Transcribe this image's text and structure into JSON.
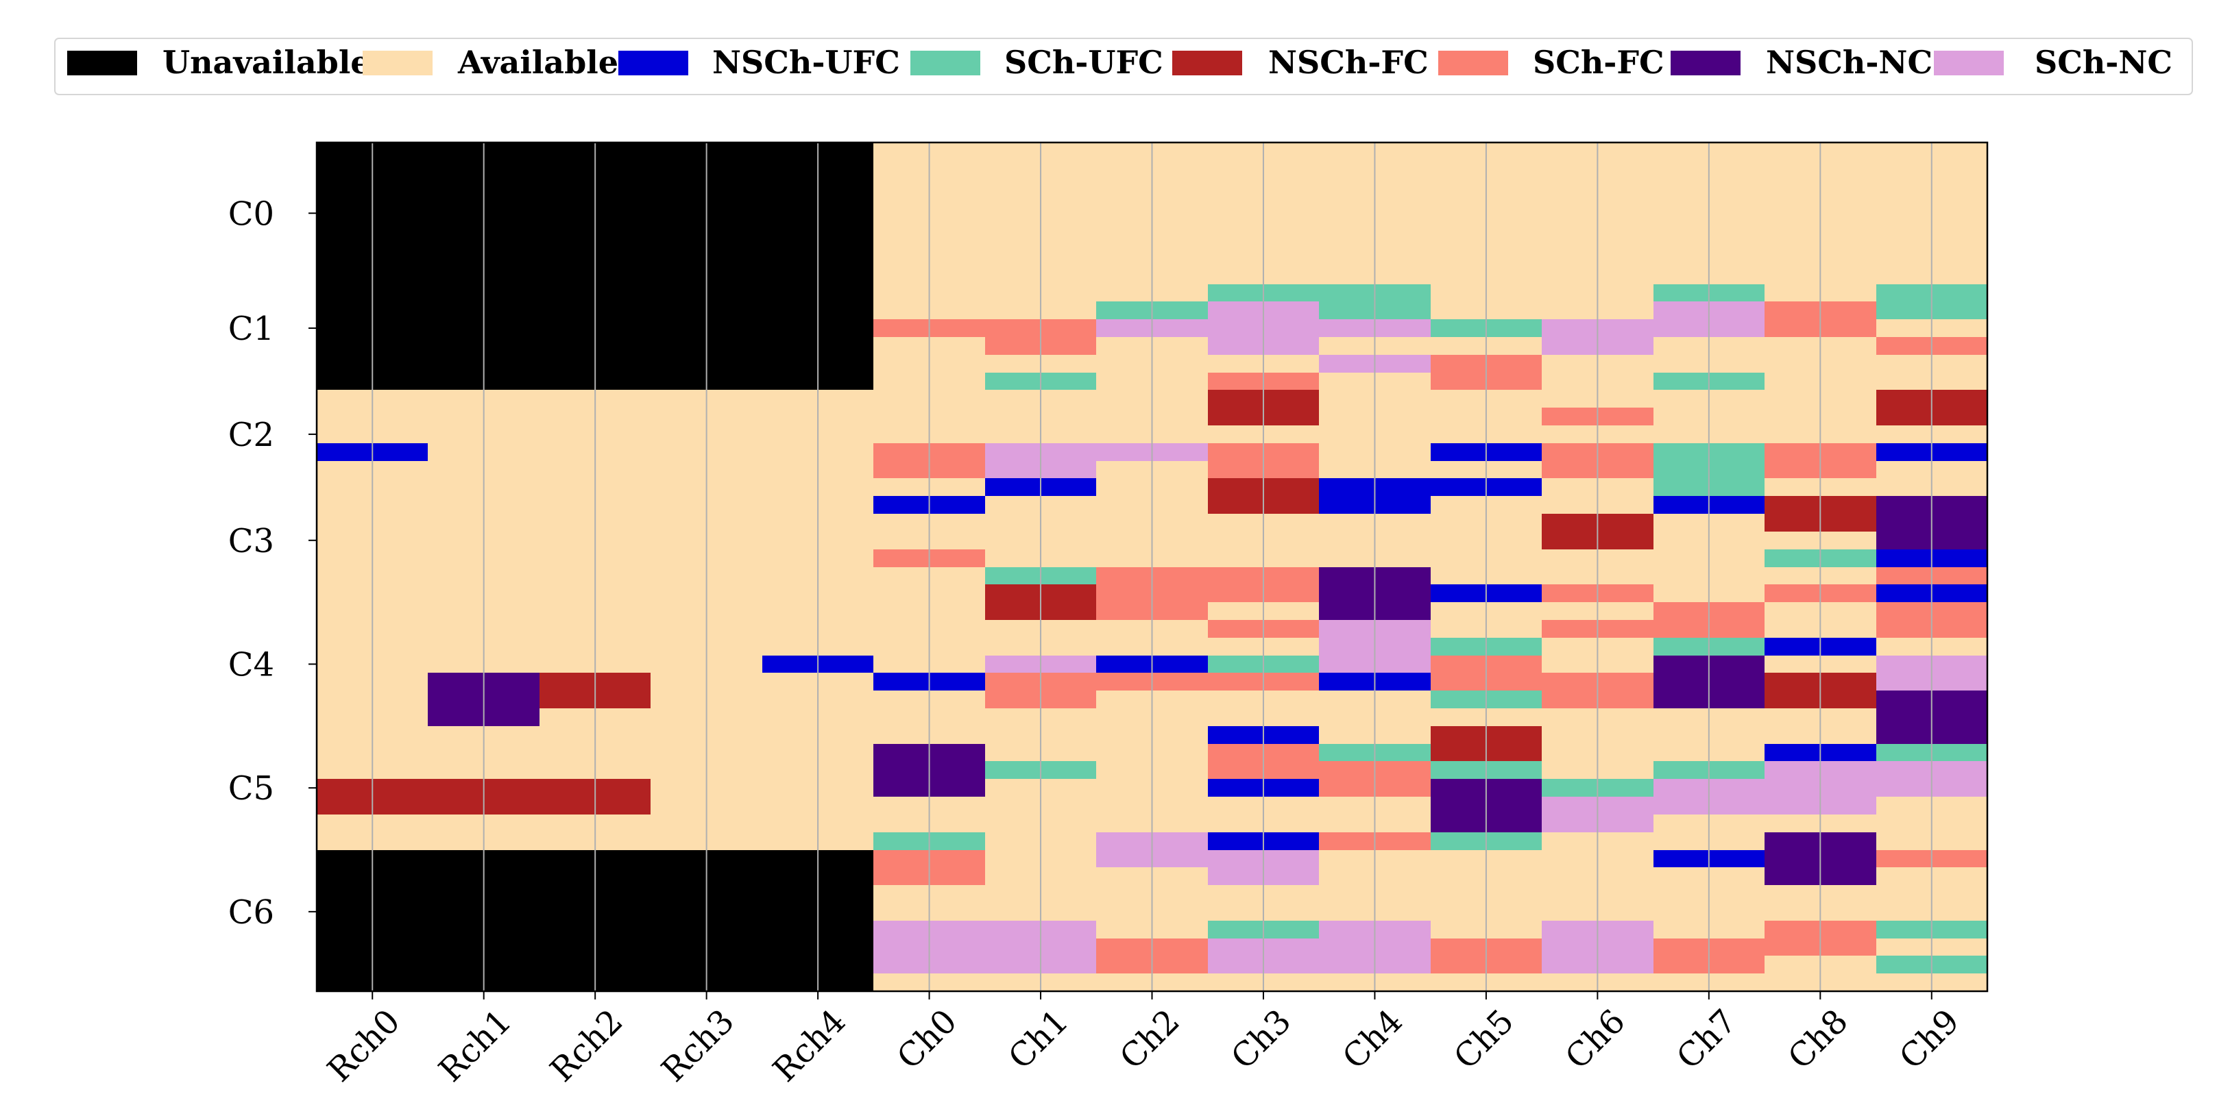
{
  "chart_data": {
    "type": "heatmap",
    "title": "",
    "xlabel": "",
    "ylabel": "",
    "x_categories": [
      "Rch0",
      "Rch1",
      "Rch2",
      "Rch3",
      "Rch4",
      "Ch0",
      "Ch1",
      "Ch2",
      "Ch3",
      "Ch4",
      "Ch5",
      "Ch6",
      "Ch7",
      "Ch8",
      "Ch9"
    ],
    "y_ticks": [
      {
        "label": "C0",
        "row": 4
      },
      {
        "label": "C1",
        "row": 10.5
      },
      {
        "label": "C2",
        "row": 16.5
      },
      {
        "label": "C3",
        "row": 22.5
      },
      {
        "label": "C4",
        "row": 29.5
      },
      {
        "label": "C5",
        "row": 36.5
      },
      {
        "label": "C6",
        "row": 43.5
      }
    ],
    "n_rows": 48,
    "legend_position": "top",
    "legend": [
      {
        "key": "U",
        "label": "Unavailable",
        "color": "#000000"
      },
      {
        "key": "A",
        "label": "Available",
        "color": "#FDDEAE"
      },
      {
        "key": "B",
        "label": "NSCh-UFC",
        "color": "#0000D8"
      },
      {
        "key": "G",
        "label": "SCh-UFC",
        "color": "#66CDAA"
      },
      {
        "key": "R",
        "label": "NSCh-FC",
        "color": "#B22222"
      },
      {
        "key": "S",
        "label": "SCh-FC",
        "color": "#FA8072"
      },
      {
        "key": "P",
        "label": "NSCh-NC",
        "color": "#4B0082"
      },
      {
        "key": "L",
        "label": "SCh-NC",
        "color": "#DDA0DD"
      }
    ],
    "columns": [
      {
        "name": "Rch0",
        "cells": [
          [
            0,
            14,
            "U"
          ],
          [
            17,
            1,
            "B"
          ],
          [
            36,
            2,
            "R"
          ],
          [
            40,
            8,
            "U"
          ]
        ]
      },
      {
        "name": "Rch1",
        "cells": [
          [
            0,
            14,
            "U"
          ],
          [
            30,
            3,
            "P"
          ],
          [
            36,
            2,
            "R"
          ],
          [
            40,
            2,
            "R"
          ],
          [
            40,
            8,
            "U"
          ]
        ]
      },
      {
        "name": "Rch2",
        "cells": [
          [
            0,
            14,
            "U"
          ],
          [
            30,
            2,
            "R"
          ],
          [
            36,
            2,
            "R"
          ],
          [
            40,
            8,
            "U"
          ]
        ]
      },
      {
        "name": "Rch3",
        "cells": [
          [
            0,
            14,
            "U"
          ],
          [
            40,
            2,
            "R"
          ],
          [
            40,
            8,
            "U"
          ]
        ]
      },
      {
        "name": "Rch4",
        "cells": [
          [
            0,
            14,
            "U"
          ],
          [
            29,
            1,
            "B"
          ],
          [
            40,
            8,
            "U"
          ]
        ]
      },
      {
        "name": "Ch0",
        "cells": [
          [
            10,
            1,
            "S"
          ],
          [
            17,
            2,
            "S"
          ],
          [
            20,
            1,
            "B"
          ],
          [
            23,
            1,
            "S"
          ],
          [
            30,
            1,
            "B"
          ],
          [
            34,
            3,
            "P"
          ],
          [
            39,
            1,
            "G"
          ],
          [
            40,
            2,
            "S"
          ],
          [
            44,
            3,
            "L"
          ]
        ]
      },
      {
        "name": "Ch1",
        "cells": [
          [
            10,
            2,
            "S"
          ],
          [
            13,
            1,
            "G"
          ],
          [
            17,
            2,
            "L"
          ],
          [
            19,
            1,
            "B"
          ],
          [
            24,
            1,
            "G"
          ],
          [
            25,
            2,
            "R"
          ],
          [
            29,
            1,
            "L"
          ],
          [
            30,
            2,
            "S"
          ],
          [
            35,
            1,
            "G"
          ],
          [
            44,
            3,
            "L"
          ]
        ]
      },
      {
        "name": "Ch2",
        "cells": [
          [
            9,
            1,
            "G"
          ],
          [
            10,
            1,
            "L"
          ],
          [
            17,
            1,
            "L"
          ],
          [
            24,
            3,
            "S"
          ],
          [
            29,
            1,
            "B"
          ],
          [
            30,
            1,
            "S"
          ],
          [
            39,
            2,
            "L"
          ],
          [
            45,
            2,
            "S"
          ]
        ]
      },
      {
        "name": "Ch3",
        "cells": [
          [
            8,
            1,
            "G"
          ],
          [
            9,
            3,
            "L"
          ],
          [
            13,
            1,
            "S"
          ],
          [
            14,
            2,
            "R"
          ],
          [
            17,
            2,
            "S"
          ],
          [
            19,
            2,
            "R"
          ],
          [
            24,
            2,
            "S"
          ],
          [
            27,
            1,
            "S"
          ],
          [
            29,
            1,
            "G"
          ],
          [
            30,
            1,
            "S"
          ],
          [
            33,
            1,
            "B"
          ],
          [
            34,
            2,
            "S"
          ],
          [
            36,
            1,
            "B"
          ],
          [
            39,
            1,
            "B"
          ],
          [
            40,
            2,
            "L"
          ],
          [
            44,
            1,
            "G"
          ],
          [
            45,
            2,
            "L"
          ]
        ]
      },
      {
        "name": "Ch4",
        "cells": [
          [
            8,
            2,
            "G"
          ],
          [
            10,
            1,
            "L"
          ],
          [
            12,
            1,
            "L"
          ],
          [
            19,
            2,
            "B"
          ],
          [
            24,
            3,
            "P"
          ],
          [
            27,
            3,
            "L"
          ],
          [
            30,
            1,
            "B"
          ],
          [
            34,
            1,
            "G"
          ],
          [
            35,
            2,
            "S"
          ],
          [
            39,
            1,
            "S"
          ],
          [
            44,
            3,
            "L"
          ]
        ]
      },
      {
        "name": "Ch5",
        "cells": [
          [
            10,
            1,
            "G"
          ],
          [
            12,
            2,
            "S"
          ],
          [
            17,
            1,
            "B"
          ],
          [
            19,
            1,
            "B"
          ],
          [
            25,
            1,
            "B"
          ],
          [
            28,
            1,
            "G"
          ],
          [
            29,
            2,
            "S"
          ],
          [
            31,
            1,
            "G"
          ],
          [
            33,
            2,
            "R"
          ],
          [
            35,
            1,
            "G"
          ],
          [
            36,
            3,
            "P"
          ],
          [
            39,
            1,
            "G"
          ],
          [
            45,
            2,
            "S"
          ]
        ]
      },
      {
        "name": "Ch6",
        "cells": [
          [
            10,
            2,
            "L"
          ],
          [
            15,
            1,
            "S"
          ],
          [
            17,
            2,
            "S"
          ],
          [
            21,
            2,
            "R"
          ],
          [
            25,
            1,
            "S"
          ],
          [
            27,
            1,
            "S"
          ],
          [
            30,
            2,
            "S"
          ],
          [
            36,
            1,
            "G"
          ],
          [
            37,
            2,
            "L"
          ],
          [
            44,
            3,
            "L"
          ]
        ]
      },
      {
        "name": "Ch7",
        "cells": [
          [
            8,
            1,
            "G"
          ],
          [
            9,
            2,
            "L"
          ],
          [
            13,
            1,
            "G"
          ],
          [
            17,
            3,
            "G"
          ],
          [
            20,
            1,
            "B"
          ],
          [
            26,
            2,
            "S"
          ],
          [
            28,
            1,
            "G"
          ],
          [
            29,
            3,
            "P"
          ],
          [
            35,
            1,
            "G"
          ],
          [
            36,
            2,
            "L"
          ],
          [
            40,
            1,
            "B"
          ],
          [
            45,
            2,
            "S"
          ]
        ]
      },
      {
        "name": "Ch8",
        "cells": [
          [
            9,
            2,
            "S"
          ],
          [
            17,
            2,
            "S"
          ],
          [
            20,
            2,
            "R"
          ],
          [
            23,
            1,
            "G"
          ],
          [
            25,
            1,
            "S"
          ],
          [
            28,
            1,
            "B"
          ],
          [
            30,
            2,
            "R"
          ],
          [
            34,
            1,
            "B"
          ],
          [
            35,
            3,
            "L"
          ],
          [
            39,
            3,
            "P"
          ],
          [
            44,
            2,
            "S"
          ]
        ]
      },
      {
        "name": "Ch9",
        "cells": [
          [
            8,
            2,
            "G"
          ],
          [
            11,
            1,
            "S"
          ],
          [
            14,
            2,
            "R"
          ],
          [
            17,
            1,
            "B"
          ],
          [
            20,
            3,
            "P"
          ],
          [
            23,
            1,
            "B"
          ],
          [
            24,
            1,
            "S"
          ],
          [
            25,
            1,
            "B"
          ],
          [
            26,
            2,
            "S"
          ],
          [
            29,
            2,
            "L"
          ],
          [
            31,
            3,
            "P"
          ],
          [
            34,
            1,
            "G"
          ],
          [
            35,
            2,
            "L"
          ],
          [
            40,
            1,
            "S"
          ],
          [
            44,
            1,
            "G"
          ],
          [
            46,
            1,
            "G"
          ]
        ]
      }
    ]
  }
}
